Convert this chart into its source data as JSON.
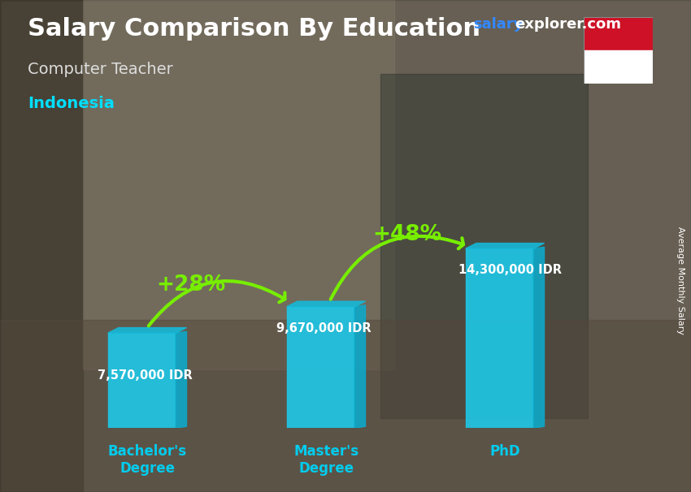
{
  "title": "Salary Comparison By Education",
  "subtitle": "Computer Teacher",
  "country": "Indonesia",
  "watermark_salary": "salary",
  "watermark_rest": "explorer.com",
  "ylabel": "Average Monthly Salary",
  "categories": [
    "Bachelor's\nDegree",
    "Master's\nDegree",
    "PhD"
  ],
  "values": [
    7570000,
    9670000,
    14300000
  ],
  "value_labels": [
    "7,570,000 IDR",
    "9,670,000 IDR",
    "14,300,000 IDR"
  ],
  "pct_labels": [
    "+28%",
    "+48%"
  ],
  "bar_color_front": "#1EC8E8",
  "bar_color_side": "#0EA8C8",
  "bar_color_top": "#16B8D8",
  "arrow_color": "#77EE00",
  "title_color": "#FFFFFF",
  "subtitle_color": "#DDDDDD",
  "country_color": "#00DFFF",
  "watermark_salary_color": "#3388FF",
  "watermark_rest_color": "#FFFFFF",
  "label_color": "#FFFFFF",
  "tick_label_color": "#00CCEE",
  "ylabel_color": "#FFFFFF",
  "bg_color_top": "#7a7060",
  "bg_color_bottom": "#5a5040",
  "figsize": [
    8.5,
    6.06
  ],
  "dpi": 100
}
